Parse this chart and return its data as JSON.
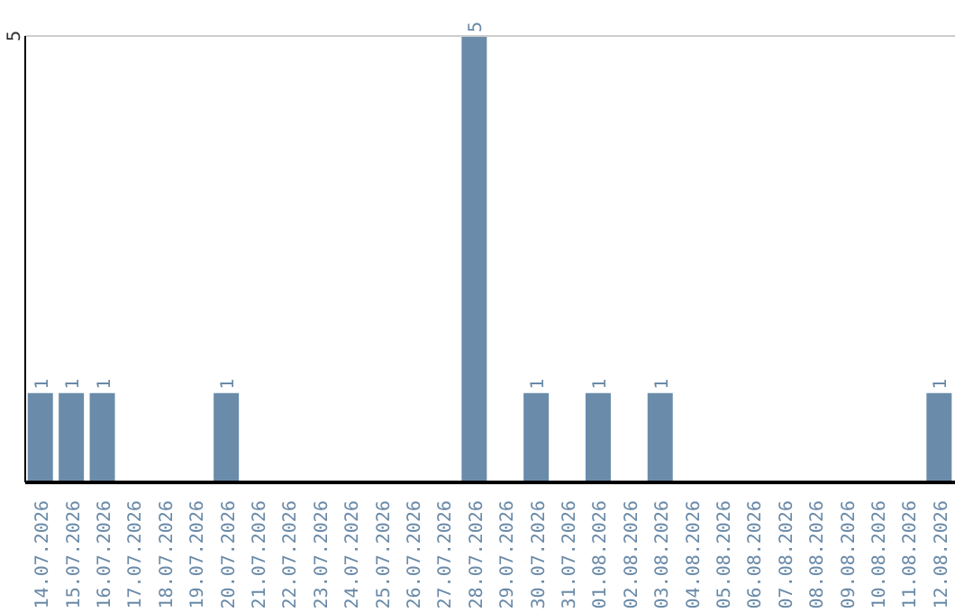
{
  "chart_data": {
    "type": "bar",
    "categories": [
      "14.07.2026",
      "15.07.2026",
      "16.07.2026",
      "17.07.2026",
      "18.07.2026",
      "19.07.2026",
      "20.07.2026",
      "21.07.2026",
      "22.07.2026",
      "23.07.2026",
      "24.07.2026",
      "25.07.2026",
      "26.07.2026",
      "27.07.2026",
      "28.07.2026",
      "29.07.2026",
      "30.07.2026",
      "31.07.2026",
      "01.08.2026",
      "02.08.2026",
      "03.08.2026",
      "04.08.2026",
      "05.08.2026",
      "06.08.2026",
      "07.08.2026",
      "08.08.2026",
      "09.08.2026",
      "10.08.2026",
      "11.08.2026",
      "12.08.2026"
    ],
    "values": [
      1,
      1,
      1,
      0,
      0,
      0,
      1,
      0,
      0,
      0,
      0,
      0,
      0,
      0,
      5,
      0,
      1,
      0,
      1,
      0,
      1,
      0,
      0,
      0,
      0,
      0,
      0,
      0,
      0,
      1
    ],
    "value_labels": [
      "1",
      "1",
      "1",
      null,
      null,
      null,
      "1",
      null,
      null,
      null,
      null,
      null,
      null,
      null,
      "5",
      null,
      "1",
      null,
      "1",
      null,
      "1",
      null,
      null,
      null,
      null,
      null,
      null,
      null,
      null,
      "1"
    ],
    "color": "#6a8caa",
    "ylim": [
      0,
      5
    ],
    "yticks": [
      5
    ],
    "ref_lines": [
      {
        "axis": "y",
        "value": 5,
        "color": "#cccccc"
      }
    ]
  }
}
